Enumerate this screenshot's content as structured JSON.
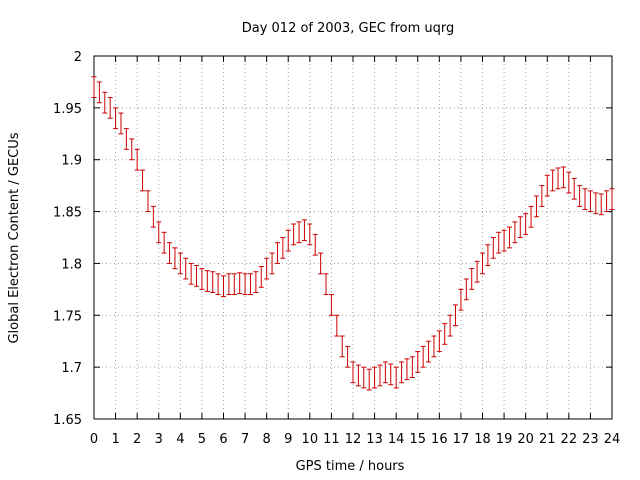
{
  "chart_data": {
    "type": "scatter",
    "title": "Day 012 of 2003, GEC from uqrg",
    "xlabel": "GPS time / hours",
    "ylabel": "Global Electron Content / GECUs",
    "xlim": [
      0,
      24
    ],
    "ylim": [
      1.65,
      2.0
    ],
    "x_ticks": [
      "0",
      "1",
      "2",
      "3",
      "4",
      "5",
      "6",
      "7",
      "8",
      "9",
      "10",
      "11",
      "12",
      "13",
      "14",
      "15",
      "16",
      "17",
      "18",
      "19",
      "20",
      "21",
      "22",
      "23",
      "24"
    ],
    "y_ticks": [
      "1.65",
      "1.7",
      "1.75",
      "1.8",
      "1.85",
      "1.9",
      "1.95",
      "2"
    ],
    "grid": true,
    "error_bar": 0.01,
    "series_color": "#cc0000",
    "series": [
      {
        "x": [
          0,
          0.25,
          0.5,
          0.75,
          1,
          1.25,
          1.5,
          1.75,
          2,
          2.25,
          2.5,
          2.75,
          3,
          3.25,
          3.5,
          3.75,
          4,
          4.25,
          4.5,
          4.75,
          5,
          5.25,
          5.5,
          5.75,
          6,
          6.25,
          6.5,
          6.75,
          7,
          7.25,
          7.5,
          7.75,
          8,
          8.25,
          8.5,
          8.75,
          9,
          9.25,
          9.5,
          9.75,
          10,
          10.25,
          10.5,
          10.75,
          11,
          11.25,
          11.5,
          11.75,
          12,
          12.25,
          12.5,
          12.75,
          13,
          13.25,
          13.5,
          13.75,
          14,
          14.25,
          14.5,
          14.75,
          15,
          15.25,
          15.5,
          15.75,
          16,
          16.25,
          16.5,
          16.75,
          17,
          17.25,
          17.5,
          17.75,
          18,
          18.25,
          18.5,
          18.75,
          19,
          19.25,
          19.5,
          19.75,
          20,
          20.25,
          20.5,
          20.75,
          21,
          21.25,
          21.5,
          21.75,
          22,
          22.25,
          22.5,
          22.75,
          23,
          23.25,
          23.5,
          23.75,
          24
        ],
        "y": [
          1.97,
          1.965,
          1.955,
          1.95,
          1.94,
          1.935,
          1.92,
          1.91,
          1.9,
          1.88,
          1.86,
          1.845,
          1.83,
          1.82,
          1.81,
          1.805,
          1.8,
          1.795,
          1.79,
          1.788,
          1.785,
          1.783,
          1.782,
          1.78,
          1.778,
          1.78,
          1.78,
          1.781,
          1.78,
          1.78,
          1.782,
          1.787,
          1.795,
          1.8,
          1.81,
          1.815,
          1.822,
          1.828,
          1.83,
          1.832,
          1.828,
          1.818,
          1.8,
          1.78,
          1.76,
          1.74,
          1.72,
          1.71,
          1.695,
          1.692,
          1.69,
          1.688,
          1.69,
          1.692,
          1.695,
          1.693,
          1.69,
          1.695,
          1.698,
          1.7,
          1.705,
          1.71,
          1.715,
          1.72,
          1.725,
          1.732,
          1.74,
          1.75,
          1.765,
          1.775,
          1.785,
          1.792,
          1.8,
          1.808,
          1.815,
          1.82,
          1.822,
          1.825,
          1.83,
          1.835,
          1.838,
          1.845,
          1.855,
          1.865,
          1.875,
          1.88,
          1.882,
          1.883,
          1.878,
          1.872,
          1.865,
          1.862,
          1.86,
          1.858,
          1.857,
          1.86,
          1.862
        ]
      }
    ]
  }
}
